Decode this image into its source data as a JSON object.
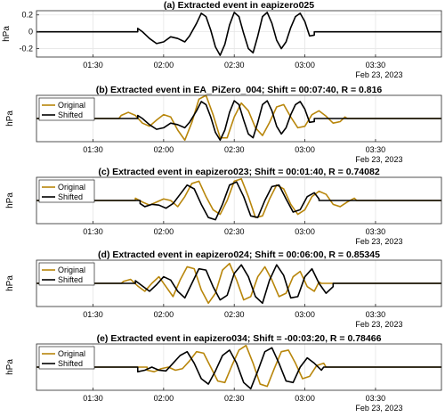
{
  "colors": {
    "original": "#B8860B",
    "shifted": "#000000",
    "grid": "#E6E6E6",
    "axis": "#262626"
  },
  "chart_data": [
    {
      "type": "line",
      "title": "(a) Extracted event in eapizero025",
      "ylabel": "hPa",
      "ylim": [
        -0.3,
        0.25
      ],
      "yticks": [
        -0.2,
        0,
        0.2
      ],
      "xlim": [
        "01:06",
        "03:58"
      ],
      "xticks": [
        "01:30",
        "02:00",
        "02:30",
        "03:00",
        "03:30"
      ],
      "date_label": "Feb 23, 2023",
      "grid": true,
      "legend": null,
      "series": [
        {
          "x": [
            "01:06",
            "01:49",
            "01:49",
            "01:51",
            "01:54",
            "01:57",
            "02:00",
            "02:03",
            "02:06",
            "02:09",
            "02:11",
            "02:14",
            "02:16",
            "02:18",
            "02:20",
            "02:22",
            "02:24",
            "02:26",
            "02:28",
            "02:30",
            "02:32",
            "02:34",
            "02:36",
            "02:38",
            "02:40",
            "02:42",
            "02:44",
            "02:46",
            "02:48",
            "02:50",
            "02:52",
            "02:54",
            "02:56",
            "02:58",
            "03:00",
            "03:02",
            "03:04",
            "03:04",
            "03:58"
          ],
          "values": [
            0,
            0,
            0.04,
            0,
            -0.08,
            -0.14,
            -0.12,
            -0.06,
            -0.08,
            -0.12,
            -0.05,
            0.1,
            0.22,
            0.18,
            0.02,
            -0.18,
            -0.28,
            -0.15,
            0.08,
            0.23,
            0.18,
            -0.02,
            -0.2,
            -0.25,
            -0.05,
            0.18,
            0.23,
            0.1,
            -0.1,
            -0.2,
            -0.12,
            0.05,
            0.18,
            0.22,
            0.12,
            -0.05,
            -0.04,
            0,
            0
          ]
        }
      ]
    },
    {
      "type": "line",
      "title": "(b) Extracted event in EA_PiZero_004; Shift = 00:07:40, R = 0.816",
      "ylabel": "hPa",
      "ylim": [
        -0.3,
        0.3
      ],
      "yticks": [],
      "xlim": [
        "01:06",
        "03:58"
      ],
      "xticks": [
        "01:30",
        "02:00",
        "02:30",
        "03:00",
        "03:30"
      ],
      "date_label": "Feb 23, 2023",
      "grid": true,
      "legend": "upper-left",
      "series": [
        {
          "name": "Original",
          "x": [
            "01:06",
            "01:41",
            "01:42",
            "01:45",
            "01:48",
            "01:51",
            "01:54",
            "01:57",
            "02:00",
            "02:03",
            "02:06",
            "02:09",
            "02:12",
            "02:15",
            "02:18",
            "02:21",
            "02:24",
            "02:27",
            "02:30",
            "02:33",
            "02:36",
            "02:39",
            "02:42",
            "02:45",
            "02:48",
            "02:51",
            "02:54",
            "02:57",
            "03:00",
            "03:03",
            "03:06",
            "03:09",
            "03:12",
            "03:15",
            "03:17",
            "03:18",
            "03:58"
          ],
          "values": [
            0,
            0,
            0.04,
            0.08,
            0.04,
            -0.06,
            -0.1,
            -0.02,
            0.05,
            0.02,
            -0.15,
            -0.28,
            -0.05,
            0.25,
            0.3,
            0.05,
            -0.25,
            -0.25,
            0.02,
            0.2,
            0.1,
            -0.12,
            -0.22,
            -0.05,
            0.15,
            0.18,
            0.02,
            -0.12,
            -0.1,
            0.05,
            0.1,
            0.03,
            -0.06,
            -0.04,
            0.02,
            0,
            0
          ]
        },
        {
          "name": "Shifted",
          "x": [
            "01:06",
            "01:49",
            "01:49",
            "01:51",
            "01:54",
            "01:57",
            "02:00",
            "02:03",
            "02:06",
            "02:09",
            "02:11",
            "02:14",
            "02:16",
            "02:18",
            "02:20",
            "02:22",
            "02:24",
            "02:26",
            "02:28",
            "02:30",
            "02:32",
            "02:34",
            "02:36",
            "02:38",
            "02:40",
            "02:42",
            "02:44",
            "02:46",
            "02:48",
            "02:50",
            "02:52",
            "02:54",
            "02:56",
            "02:58",
            "03:00",
            "03:02",
            "03:04",
            "03:04",
            "03:58"
          ],
          "values": [
            0,
            0,
            0.04,
            0,
            -0.08,
            -0.14,
            -0.12,
            -0.06,
            -0.08,
            -0.12,
            -0.05,
            0.1,
            0.22,
            0.18,
            0.02,
            -0.18,
            -0.28,
            -0.15,
            0.08,
            0.23,
            0.18,
            -0.02,
            -0.2,
            -0.25,
            -0.05,
            0.18,
            0.23,
            0.1,
            -0.1,
            -0.2,
            -0.12,
            0.05,
            0.18,
            0.22,
            0.12,
            -0.05,
            -0.04,
            0,
            0
          ]
        }
      ]
    },
    {
      "type": "line",
      "title": "(c) Extracted event in eapizero023; Shift = 00:01:40, R = 0.74082",
      "ylabel": "hPa",
      "ylim": [
        -0.3,
        0.3
      ],
      "yticks": [],
      "xlim": [
        "01:06",
        "03:58"
      ],
      "xticks": [
        "01:30",
        "02:00",
        "02:30",
        "03:00",
        "03:30"
      ],
      "date_label": "Feb 23, 2023",
      "grid": true,
      "legend": "upper-left",
      "series": [
        {
          "name": "Original",
          "x": [
            "01:06",
            "01:48",
            "01:48",
            "01:51",
            "01:54",
            "01:57",
            "02:00",
            "02:03",
            "02:06",
            "02:09",
            "02:12",
            "02:15",
            "02:18",
            "02:21",
            "02:24",
            "02:27",
            "02:30",
            "02:33",
            "02:36",
            "02:39",
            "02:42",
            "02:45",
            "02:48",
            "02:51",
            "02:54",
            "02:57",
            "03:00",
            "03:03",
            "03:06",
            "03:09",
            "03:12",
            "03:15",
            "03:18",
            "03:21",
            "03:22",
            "03:58"
          ],
          "values": [
            0,
            0,
            0.03,
            -0.02,
            -0.06,
            -0.02,
            0.02,
            0.0,
            -0.08,
            0.05,
            0.22,
            0.25,
            0.05,
            -0.12,
            -0.18,
            0.0,
            0.25,
            0.28,
            0.05,
            -0.22,
            -0.2,
            0.02,
            0.2,
            0.15,
            -0.05,
            -0.18,
            -0.12,
            0.05,
            0.12,
            0.08,
            -0.05,
            -0.08,
            -0.02,
            0.03,
            0,
            0
          ]
        },
        {
          "name": "Shifted",
          "x": [
            "01:06",
            "01:50",
            "01:50",
            "01:52",
            "01:55",
            "01:58",
            "02:01",
            "02:04",
            "02:07",
            "02:10",
            "02:13",
            "02:16",
            "02:19",
            "02:22",
            "02:25",
            "02:28",
            "02:31",
            "02:34",
            "02:37",
            "02:40",
            "02:43",
            "02:46",
            "02:49",
            "02:52",
            "02:55",
            "02:58",
            "03:01",
            "03:04",
            "03:06",
            "03:06",
            "03:58"
          ],
          "values": [
            0,
            0,
            -0.04,
            -0.08,
            -0.05,
            -0.06,
            -0.1,
            -0.04,
            0.08,
            0.2,
            0.15,
            -0.05,
            -0.22,
            -0.25,
            -0.05,
            0.2,
            0.24,
            0.05,
            -0.2,
            -0.22,
            0.0,
            0.18,
            0.2,
            0.02,
            -0.15,
            -0.12,
            0.05,
            0.1,
            0.02,
            0,
            0
          ]
        }
      ]
    },
    {
      "type": "line",
      "title": "(d) Extracted event in eapizero024; Shift = 00:06:00, R = 0.85345",
      "ylabel": "hPa",
      "ylim": [
        -0.35,
        0.35
      ],
      "yticks": [],
      "xlim": [
        "01:06",
        "03:58"
      ],
      "xticks": [
        "01:30",
        "02:00",
        "02:30",
        "03:00",
        "03:30"
      ],
      "date_label": "Feb 23, 2023",
      "grid": true,
      "legend": "upper-left",
      "series": [
        {
          "name": "Original",
          "x": [
            "01:06",
            "01:42",
            "01:43",
            "01:46",
            "01:49",
            "01:52",
            "01:55",
            "01:58",
            "02:01",
            "02:04",
            "02:07",
            "02:10",
            "02:13",
            "02:16",
            "02:19",
            "02:22",
            "02:25",
            "02:28",
            "02:31",
            "02:34",
            "02:37",
            "02:40",
            "02:43",
            "02:46",
            "02:49",
            "02:52",
            "02:55",
            "02:58",
            "03:01",
            "03:04",
            "03:06",
            "03:07",
            "03:58"
          ],
          "values": [
            0,
            0,
            0.03,
            0.06,
            -0.04,
            -0.12,
            0.0,
            0.1,
            -0.05,
            -0.2,
            0.05,
            0.25,
            0.22,
            -0.1,
            -0.3,
            -0.15,
            0.2,
            0.3,
            0.05,
            -0.25,
            -0.2,
            0.1,
            0.25,
            0.05,
            -0.2,
            -0.15,
            0.1,
            0.18,
            -0.05,
            -0.12,
            0.02,
            0,
            0
          ]
        },
        {
          "name": "Shifted",
          "x": [
            "01:06",
            "01:48",
            "01:48",
            "01:51",
            "01:54",
            "01:57",
            "02:00",
            "02:03",
            "02:06",
            "02:09",
            "02:12",
            "02:15",
            "02:18",
            "02:21",
            "02:24",
            "02:27",
            "02:30",
            "02:33",
            "02:36",
            "02:39",
            "02:42",
            "02:45",
            "02:48",
            "02:51",
            "02:54",
            "02:57",
            "03:00",
            "03:03",
            "03:06",
            "03:09",
            "03:12",
            "03:12",
            "03:58"
          ],
          "values": [
            0,
            0,
            0.04,
            -0.04,
            -0.12,
            -0.02,
            0.1,
            0.05,
            -0.12,
            -0.22,
            0.0,
            0.22,
            0.2,
            -0.05,
            -0.25,
            -0.18,
            0.15,
            0.28,
            0.1,
            -0.2,
            -0.3,
            0.05,
            0.28,
            0.12,
            -0.22,
            -0.2,
            0.1,
            0.22,
            0.0,
            -0.15,
            -0.05,
            0,
            0
          ]
        }
      ]
    },
    {
      "type": "line",
      "title": "(e) Extracted event in eapizero034; Shift = -00:03:20, R = 0.78466",
      "ylabel": "hPa",
      "ylim": [
        -0.3,
        0.3
      ],
      "yticks": [],
      "xlim": [
        "01:06",
        "03:58"
      ],
      "xticks": [
        "01:30",
        "02:00",
        "02:30",
        "03:00",
        "03:30"
      ],
      "date_label": "Feb 23, 2023",
      "grid": true,
      "legend": "upper-left",
      "series": [
        {
          "name": "Original",
          "x": [
            "01:06",
            "01:53",
            "01:53",
            "01:56",
            "01:59",
            "02:02",
            "02:05",
            "02:08",
            "02:11",
            "02:14",
            "02:17",
            "02:20",
            "02:23",
            "02:26",
            "02:29",
            "02:32",
            "02:35",
            "02:38",
            "02:41",
            "02:44",
            "02:47",
            "02:50",
            "02:53",
            "02:56",
            "02:59",
            "03:02",
            "03:05",
            "03:08",
            "03:09",
            "03:58"
          ],
          "values": [
            0,
            0,
            -0.04,
            -0.06,
            -0.02,
            0.0,
            -0.04,
            -0.02,
            0.08,
            0.2,
            0.18,
            0.0,
            -0.18,
            -0.2,
            0.02,
            0.22,
            0.28,
            0.05,
            -0.22,
            -0.25,
            -0.02,
            0.2,
            0.22,
            0.05,
            -0.15,
            -0.12,
            0.02,
            0.05,
            0,
            0
          ]
        },
        {
          "name": "Shifted",
          "x": [
            "01:06",
            "01:49",
            "01:49",
            "01:52",
            "01:55",
            "01:58",
            "02:01",
            "02:04",
            "02:07",
            "02:10",
            "02:13",
            "02:16",
            "02:19",
            "02:22",
            "02:25",
            "02:28",
            "02:31",
            "02:34",
            "02:37",
            "02:40",
            "02:43",
            "02:46",
            "02:49",
            "02:52",
            "02:55",
            "02:58",
            "03:01",
            "03:04",
            "03:07",
            "03:08",
            "03:58"
          ],
          "values": [
            0,
            0,
            -0.06,
            -0.04,
            0.0,
            -0.04,
            -0.05,
            0.05,
            0.15,
            0.2,
            0.05,
            -0.15,
            -0.22,
            -0.05,
            0.15,
            0.22,
            0.05,
            -0.2,
            -0.28,
            -0.05,
            0.2,
            0.25,
            0.05,
            -0.18,
            -0.2,
            0.0,
            0.12,
            0.05,
            -0.04,
            0,
            0
          ]
        }
      ]
    }
  ]
}
